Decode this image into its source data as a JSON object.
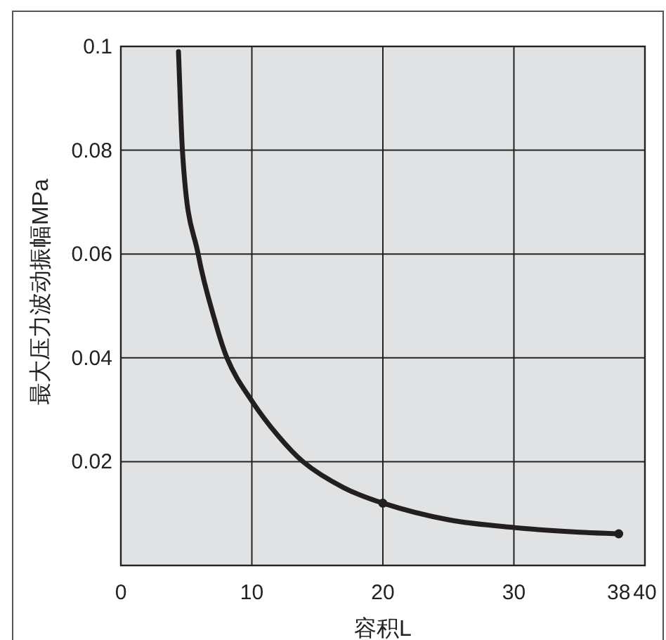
{
  "chart_data": {
    "type": "line",
    "xlabel": "容积L",
    "ylabel": "最大压力波动振幅MPa",
    "x": [
      4.4,
      4.7,
      5.9,
      7.2,
      8.1,
      10,
      12,
      13.9,
      17,
      20,
      25,
      30,
      35,
      38
    ],
    "series": [
      {
        "color": "#231f20",
        "values": [
          0.099,
          0.08,
          0.06,
          0.047,
          0.04,
          0.0317,
          0.025,
          0.02,
          0.015,
          0.012,
          0.0088,
          0.0073,
          0.0064,
          0.0061
        ]
      },
      {
        "type": "scatter",
        "color": "#231f20",
        "x": [
          20,
          38
        ],
        "values": [
          0.012,
          0.0061
        ],
        "marker": "circle"
      }
    ],
    "xlim": [
      0,
      40
    ],
    "ylim": [
      0,
      0.1
    ],
    "xticks": [
      0,
      10,
      20,
      30,
      {
        "value": 38,
        "label": "38"
      },
      40
    ],
    "yticks": [
      {
        "value": 0,
        "label": null
      },
      0.02,
      0.04,
      0.06,
      0.08,
      0.1
    ],
    "grid": true
  }
}
